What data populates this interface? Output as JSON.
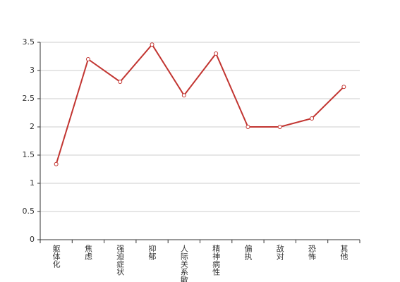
{
  "chart_data": {
    "type": "line",
    "categories": [
      "躯体化",
      "焦虑",
      "强迫症状",
      "抑郁",
      "人际关系敏感",
      "精神病性",
      "偏执",
      "敌对",
      "恐怖",
      "其他"
    ],
    "series": [
      {
        "color": "#c23531",
        "values": [
          1.34,
          3.2,
          2.8,
          3.46,
          2.56,
          3.3,
          2.0,
          2.0,
          2.15,
          2.71
        ]
      }
    ],
    "ylim": [
      0,
      3.5
    ],
    "yticks": [
      0,
      0.5,
      1,
      1.5,
      2,
      2.5,
      3,
      3.5
    ],
    "grid": true
  }
}
